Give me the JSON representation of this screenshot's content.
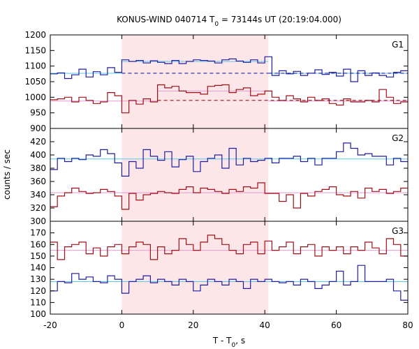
{
  "chart_data": {
    "type": "line",
    "title": "KONUS-WIND 040714 T0 = 73144s UT (20:19:04.000)",
    "title_parts": [
      "KONUS-WIND 040714 T",
      "0",
      " = 73144s UT (20:19:04.000)"
    ],
    "xlabel": "T - T0, s",
    "xlabel_parts": [
      "T - T",
      "0",
      ", s"
    ],
    "ylabel": "counts / sec",
    "xlim": [
      -20,
      80
    ],
    "xticks": [
      -20,
      0,
      20,
      40,
      60,
      80
    ],
    "highlight_interval": [
      0,
      41
    ],
    "colors": {
      "blue": "#1f1fa0",
      "red": "#a0101a",
      "blue_mean": "#5bc8e8",
      "red_mean": "#e89ad2",
      "highlight": "#fde6e8"
    },
    "panels": [
      {
        "label": "G1",
        "ylim": [
          900,
          1200
        ],
        "yticks": [
          900,
          950,
          1000,
          1050,
          1100,
          1150,
          1200
        ],
        "series": [
          {
            "color": "blue",
            "x": [
              -20,
              -18,
              -16,
              -14,
              -12,
              -10,
              -8,
              -6,
              -4,
              -2,
              0,
              2,
              4,
              6,
              8,
              10,
              12,
              14,
              16,
              18,
              20,
              22,
              24,
              26,
              28,
              30,
              32,
              34,
              36,
              38,
              40,
              42,
              44,
              46,
              48,
              50,
              52,
              54,
              56,
              58,
              60,
              62,
              64,
              66,
              68,
              70,
              72,
              74,
              76,
              78,
              80
            ],
            "y": [
              1075,
              1078,
              1060,
              1072,
              1090,
              1065,
              1082,
              1072,
              1095,
              1080,
              1120,
              1115,
              1118,
              1110,
              1117,
              1112,
              1108,
              1118,
              1108,
              1115,
              1120,
              1118,
              1116,
              1110,
              1120,
              1123,
              1116,
              1112,
              1120,
              1110,
              1130,
              1070,
              1085,
              1075,
              1083,
              1070,
              1077,
              1088,
              1073,
              1080,
              1068,
              1090,
              1050,
              1085,
              1070,
              1078,
              1070,
              1065,
              1080,
              1085,
              1085
            ],
            "mean_segments": [
              [
                -20,
                0,
                1077
              ],
              [
                0,
                41,
                1115
              ],
              [
                41,
                80,
                1077
              ]
            ],
            "dashed_segments": [
              [
                0,
                41,
                1077
              ],
              [
                41,
                80,
                1077
              ]
            ]
          },
          {
            "color": "red",
            "x": [
              -20,
              -18,
              -16,
              -14,
              -12,
              -10,
              -8,
              -6,
              -4,
              -2,
              0,
              2,
              4,
              6,
              8,
              10,
              12,
              14,
              16,
              18,
              20,
              22,
              24,
              26,
              28,
              30,
              32,
              34,
              36,
              38,
              40,
              42,
              44,
              46,
              48,
              50,
              52,
              54,
              56,
              58,
              60,
              62,
              64,
              66,
              68,
              70,
              72,
              74,
              76,
              78,
              80
            ],
            "y": [
              992,
              995,
              1000,
              985,
              1000,
              990,
              980,
              985,
              1015,
              1005,
              950,
              990,
              978,
              995,
              985,
              1040,
              1030,
              1035,
              1020,
              1015,
              1015,
              1010,
              1035,
              1038,
              1040,
              1015,
              1025,
              1030,
              1005,
              1010,
              1020,
              1000,
              990,
              1005,
              995,
              985,
              1000,
              990,
              995,
              980,
              975,
              995,
              985,
              985,
              990,
              985,
              1025,
              1000,
              980,
              985,
              950
            ],
            "mean_segments": [
              [
                -20,
                0,
                988
              ],
              [
                0,
                10,
                988
              ],
              [
                10,
                41,
                1020
              ],
              [
                41,
                80,
                988
              ]
            ],
            "dashed_segments": [
              [
                10,
                80,
                990
              ]
            ]
          }
        ]
      },
      {
        "label": "G2",
        "ylim": [
          300,
          440
        ],
        "yticks": [
          300,
          320,
          340,
          360,
          380,
          400,
          420
        ],
        "series": [
          {
            "color": "blue",
            "x": [
              -20,
              -18,
              -16,
              -14,
              -12,
              -10,
              -8,
              -6,
              -4,
              -2,
              0,
              2,
              4,
              6,
              8,
              10,
              12,
              14,
              16,
              18,
              20,
              22,
              24,
              26,
              28,
              30,
              32,
              34,
              36,
              38,
              40,
              42,
              44,
              46,
              48,
              50,
              52,
              54,
              56,
              58,
              60,
              62,
              64,
              66,
              68,
              70,
              72,
              74,
              76,
              78,
              80
            ],
            "y": [
              378,
              395,
              390,
              395,
              393,
              400,
              398,
              408,
              402,
              388,
              368,
              390,
              380,
              408,
              398,
              392,
              405,
              382,
              393,
              398,
              375,
              390,
              395,
              400,
              380,
              410,
              385,
              395,
              390,
              392,
              395,
              388,
              395,
              395,
              398,
              390,
              395,
              385,
              395,
              395,
              405,
              418,
              410,
              400,
              402,
              398,
              398,
              385,
              395,
              390,
              395
            ],
            "mean_segments": [
              [
                -20,
                80,
                394
              ]
            ]
          },
          {
            "color": "red",
            "x": [
              -20,
              -18,
              -16,
              -14,
              -12,
              -10,
              -8,
              -6,
              -4,
              -2,
              0,
              2,
              4,
              6,
              8,
              10,
              12,
              14,
              16,
              18,
              20,
              22,
              24,
              26,
              28,
              30,
              32,
              34,
              36,
              38,
              40,
              42,
              44,
              46,
              48,
              50,
              52,
              54,
              56,
              58,
              60,
              62,
              64,
              66,
              68,
              70,
              72,
              74,
              76,
              78,
              80
            ],
            "y": [
              322,
              338,
              343,
              350,
              345,
              342,
              343,
              348,
              345,
              338,
              318,
              342,
              332,
              340,
              342,
              345,
              343,
              342,
              348,
              352,
              343,
              350,
              348,
              345,
              342,
              348,
              345,
              352,
              350,
              358,
              342,
              342,
              330,
              340,
              320,
              342,
              338,
              345,
              348,
              352,
              340,
              338,
              345,
              335,
              350,
              345,
              348,
              342,
              345,
              350,
              348
            ],
            "mean_segments": [
              [
                -20,
                80,
                343
              ]
            ]
          }
        ]
      },
      {
        "label": "G3",
        "ylim": [
          100,
          180
        ],
        "yticks": [
          100,
          110,
          120,
          130,
          140,
          150,
          160,
          170
        ],
        "series": [
          {
            "color": "red",
            "x": [
              -20,
              -18,
              -16,
              -14,
              -12,
              -10,
              -8,
              -6,
              -4,
              -2,
              0,
              2,
              4,
              6,
              8,
              10,
              12,
              14,
              16,
              18,
              20,
              22,
              24,
              26,
              28,
              30,
              32,
              34,
              36,
              38,
              40,
              42,
              44,
              46,
              48,
              50,
              52,
              54,
              56,
              58,
              60,
              62,
              64,
              66,
              68,
              70,
              72,
              74,
              76,
              78,
              80
            ],
            "y": [
              162,
              147,
              158,
              160,
              162,
              152,
              157,
              150,
              158,
              160,
              152,
              158,
              162,
              160,
              147,
              158,
              152,
              155,
              165,
              160,
              155,
              162,
              168,
              165,
              160,
              155,
              152,
              160,
              162,
              152,
              163,
              155,
              158,
              162,
              152,
              158,
              160,
              150,
              158,
              155,
              158,
              152,
              158,
              155,
              162,
              157,
              152,
              165,
              160,
              150,
              145
            ],
            "mean_segments": [
              [
                -20,
                80,
                155
              ]
            ]
          },
          {
            "color": "blue",
            "x": [
              -20,
              -18,
              -16,
              -14,
              -12,
              -10,
              -8,
              -6,
              -4,
              -2,
              0,
              2,
              4,
              6,
              8,
              10,
              12,
              14,
              16,
              18,
              20,
              22,
              24,
              26,
              28,
              30,
              32,
              34,
              36,
              38,
              40,
              42,
              44,
              46,
              48,
              50,
              52,
              54,
              56,
              58,
              60,
              62,
              64,
              66,
              68,
              70,
              72,
              74,
              76,
              78,
              80
            ],
            "y": [
              120,
              128,
              127,
              135,
              130,
              132,
              128,
              127,
              133,
              130,
              118,
              128,
              130,
              133,
              127,
              130,
              128,
              125,
              130,
              128,
              120,
              125,
              130,
              128,
              125,
              130,
              128,
              122,
              130,
              128,
              130,
              128,
              127,
              128,
              125,
              130,
              128,
              122,
              125,
              128,
              137,
              125,
              128,
              142,
              128,
              128,
              128,
              130,
              120,
              112,
              130
            ],
            "mean_segments": [
              [
                -20,
                80,
                128
              ]
            ]
          }
        ]
      }
    ]
  }
}
